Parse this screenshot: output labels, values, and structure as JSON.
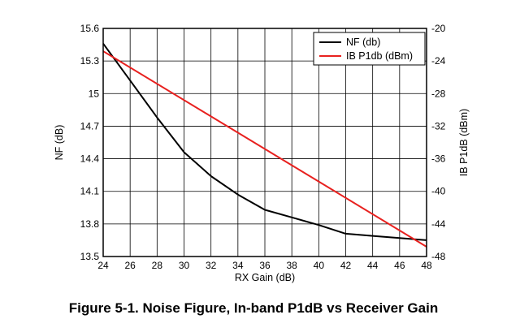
{
  "chart_data": {
    "type": "line",
    "xlabel": "RX Gain (dB)",
    "ylabel": "NF (dB)",
    "y2label": "IB P1dB (dBm)",
    "xlim": [
      24,
      48
    ],
    "ylim": [
      13.5,
      15.6
    ],
    "y2lim": [
      -48,
      -20
    ],
    "x_ticks": [
      24,
      26,
      28,
      30,
      32,
      34,
      36,
      38,
      40,
      42,
      44,
      46,
      48
    ],
    "y_ticks": [
      "13.5",
      "13.8",
      "14.1",
      "14.4",
      "14.7",
      "15",
      "15.3",
      "15.6"
    ],
    "y2_ticks": [
      "-48",
      "-44",
      "-40",
      "-36",
      "-32",
      "-28",
      "-24",
      "-20"
    ],
    "grid": true,
    "legend_position": "top-right",
    "series": [
      {
        "name": "NF (db)",
        "axis": "left",
        "color": "#000000",
        "x": [
          24,
          26,
          28,
          30,
          32,
          34,
          36,
          38,
          40,
          42,
          44,
          46,
          48
        ],
        "y": [
          15.46,
          15.12,
          14.78,
          14.46,
          14.24,
          14.07,
          13.93,
          13.86,
          13.79,
          13.71,
          13.69,
          13.67,
          13.65
        ]
      },
      {
        "name": "IB P1db (dBm)",
        "axis": "right",
        "color": "#e8211f",
        "x": [
          24,
          48
        ],
        "y": [
          -22.8,
          -46.8
        ]
      }
    ]
  },
  "caption": "Figure 5-1. Noise Figure, In-band P1dB vs Receiver Gain"
}
